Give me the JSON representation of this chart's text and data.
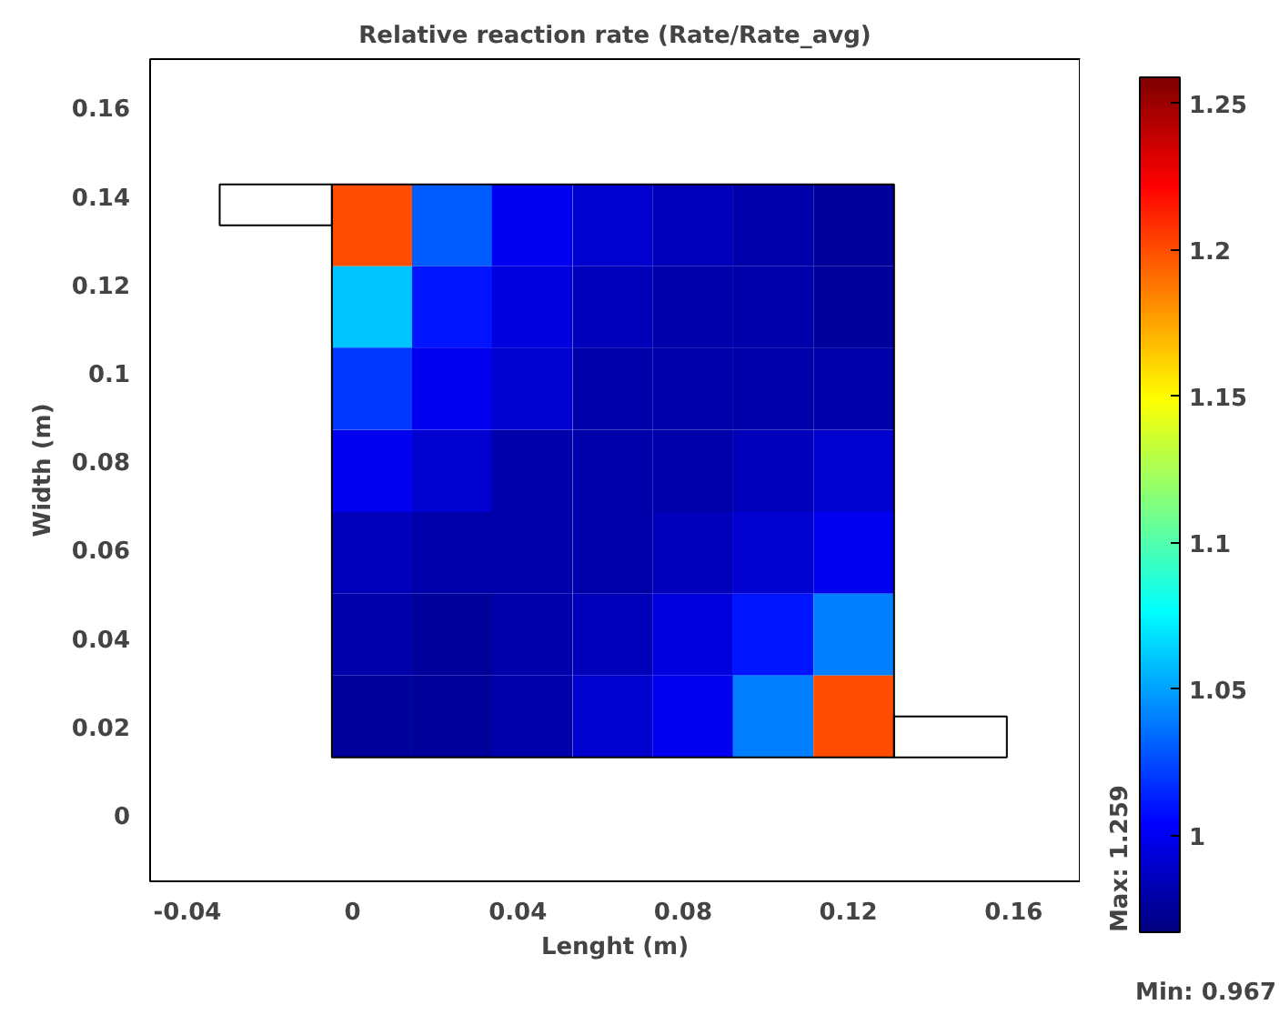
{
  "chart_data": {
    "type": "heatmap",
    "title": "Relative reaction rate (Rate/Rate_avg)",
    "xlabel": "Lenght (m)",
    "ylabel": "Width (m)",
    "x": [
      0.0047,
      0.0241,
      0.0435,
      0.063,
      0.0824,
      0.1018,
      0.1213
    ],
    "y": [
      0.1334,
      0.1149,
      0.0964,
      0.0778,
      0.0593,
      0.0408,
      0.0223
    ],
    "cells": [
      [
        1.2,
        1.03,
        1.0,
        0.99,
        0.985,
        0.98,
        0.975
      ],
      [
        1.06,
        1.01,
        0.995,
        0.985,
        0.98,
        0.98,
        0.975
      ],
      [
        1.02,
        1.0,
        0.99,
        0.98,
        0.98,
        0.98,
        0.98
      ],
      [
        1.0,
        0.99,
        0.98,
        0.98,
        0.98,
        0.985,
        0.99
      ],
      [
        0.985,
        0.98,
        0.98,
        0.98,
        0.985,
        0.99,
        1.0
      ],
      [
        0.98,
        0.975,
        0.98,
        0.985,
        0.995,
        1.01,
        1.04
      ],
      [
        0.975,
        0.975,
        0.98,
        0.99,
        1.0,
        1.04,
        1.2
      ]
    ],
    "clim": [
      0.967,
      1.259
    ],
    "cticks": [
      1,
      1.05,
      1.1,
      1.15,
      1.2,
      1.25
    ],
    "xlim": [
      -0.049,
      0.176
    ],
    "ylim": [
      -0.015,
      0.171
    ],
    "xticks": [
      -0.04,
      0,
      0.04,
      0.08,
      0.12,
      0.16
    ],
    "yticks": [
      0,
      0.02,
      0.04,
      0.06,
      0.08,
      0.1,
      0.12,
      0.14,
      0.16
    ],
    "annotations": [
      "Max: 1.259",
      "Min: 0.967"
    ],
    "grid": false
  }
}
